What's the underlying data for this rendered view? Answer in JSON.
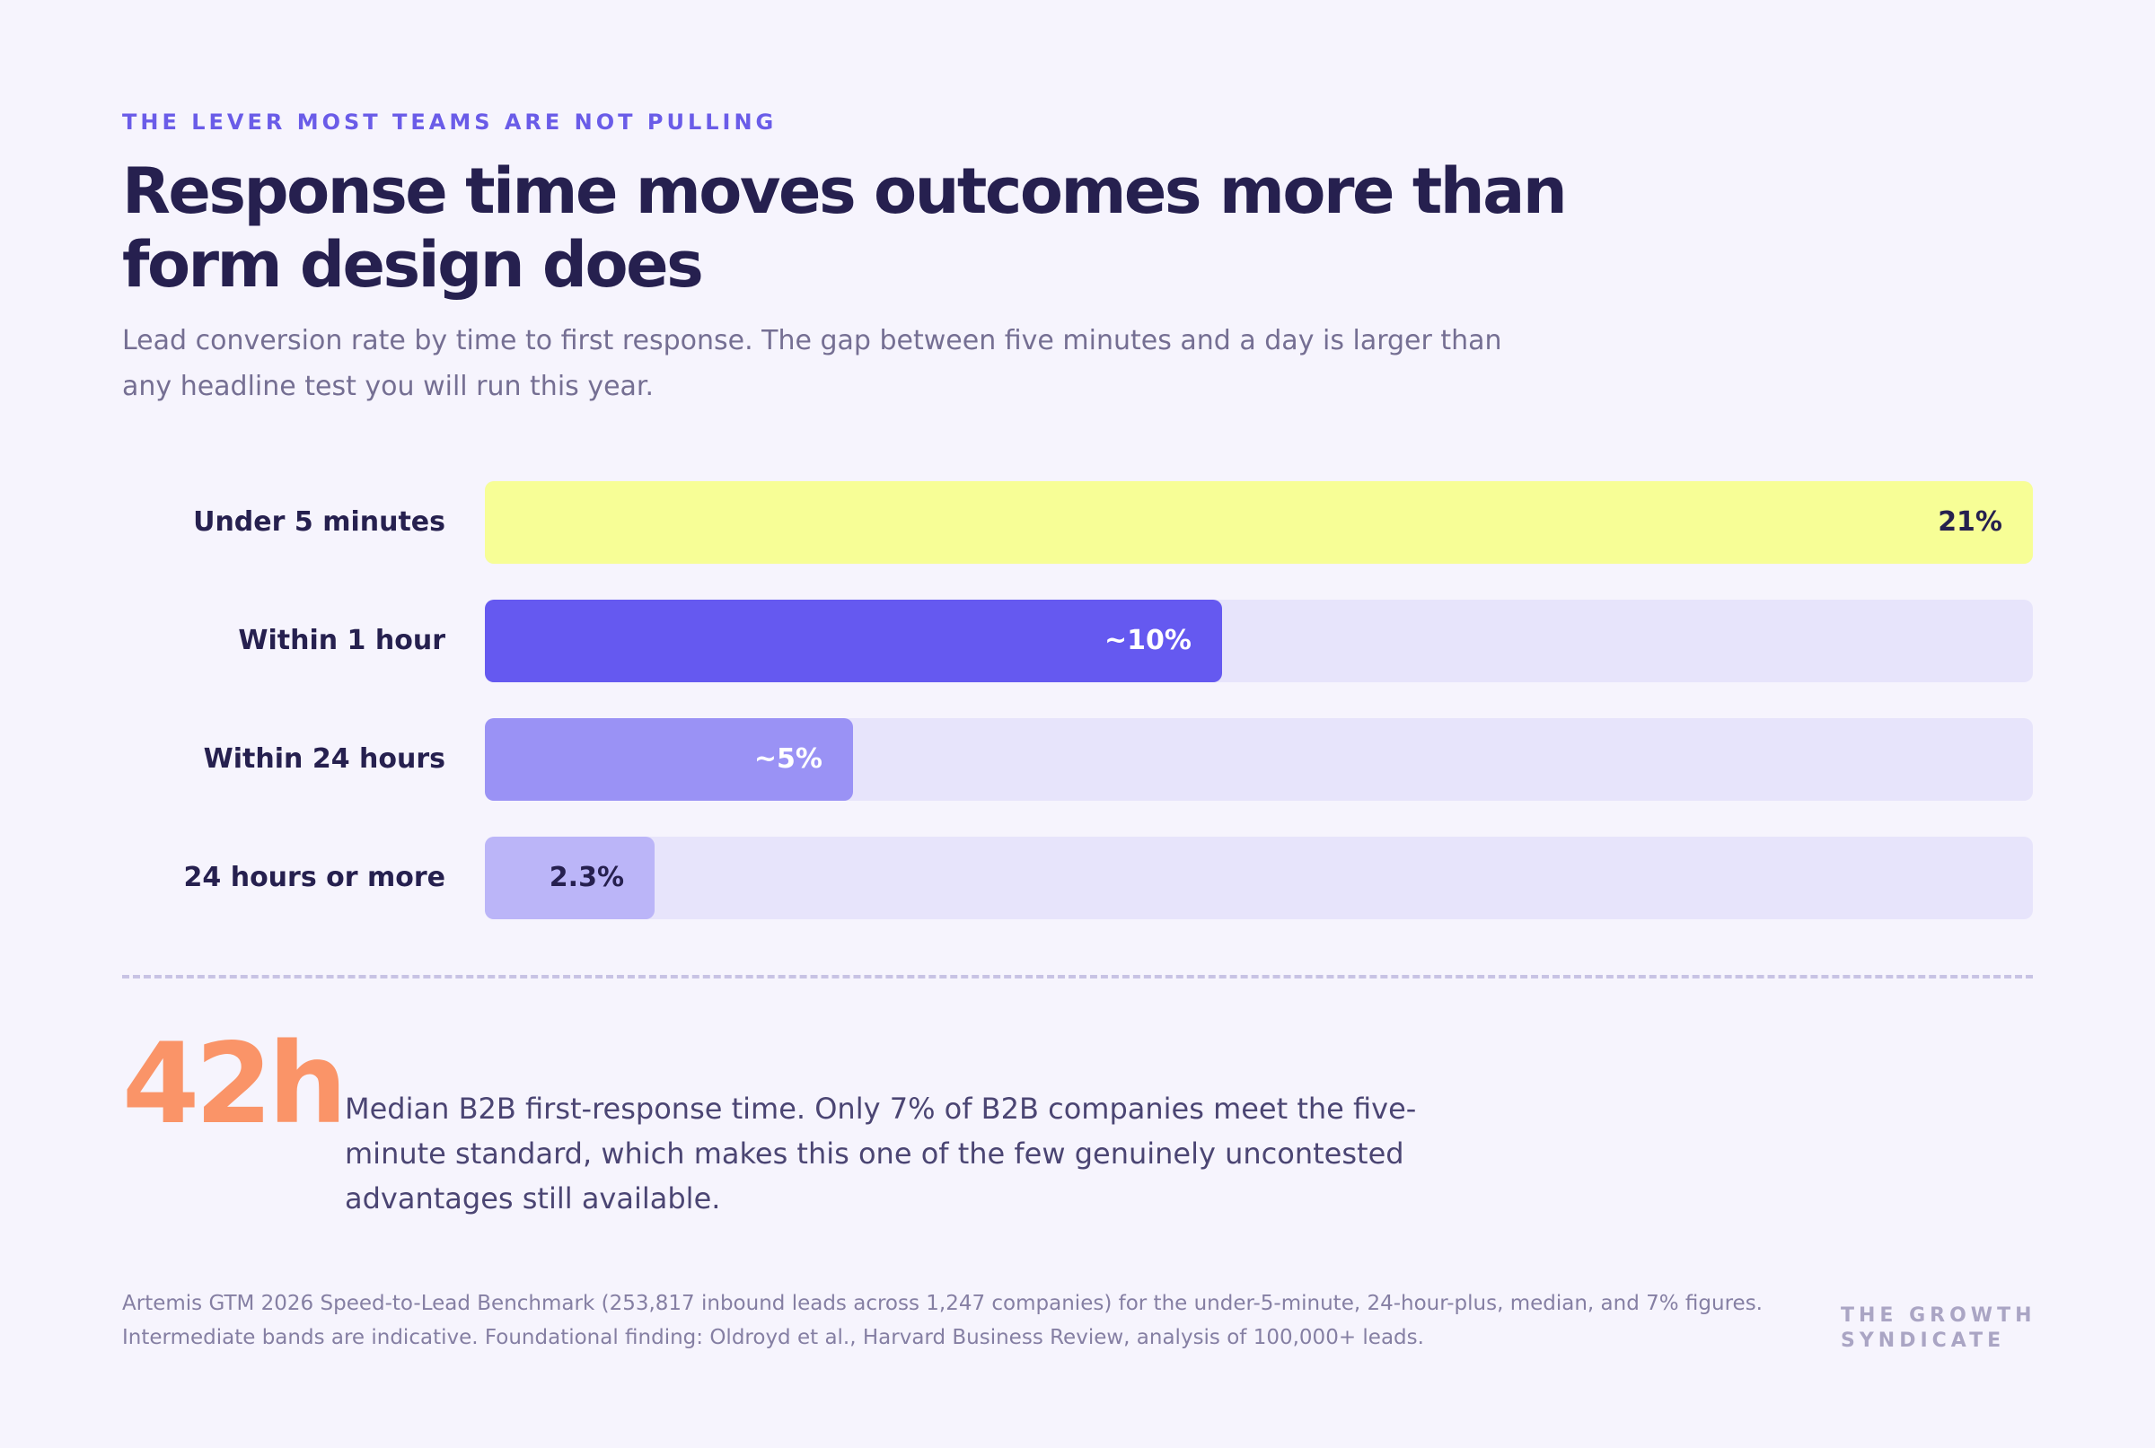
{
  "eyebrow": "THE LEVER MOST TEAMS ARE NOT PULLING",
  "title": "Response time moves outcomes more than form design does",
  "subtitle": "Lead conversion rate by time to first response. The gap between five minutes and a day is larger than any headline test you will run this year.",
  "chart_data": {
    "type": "bar",
    "orientation": "horizontal",
    "categories": [
      "Under 5 minutes",
      "Within 1 hour",
      "Within 24 hours",
      "24 hours or more"
    ],
    "values": [
      21,
      10,
      5,
      2.3
    ],
    "value_labels": [
      "21%",
      "~10%",
      "~5%",
      "2.3%"
    ],
    "xlim": [
      0,
      21
    ],
    "unit": "%",
    "grid": false,
    "legend": "none",
    "colors": [
      "#f7fe96",
      "#6559f0",
      "#9a92f5",
      "#bbb5f8"
    ],
    "label_colors": [
      "#26204f",
      "#ffffff",
      "#ffffff",
      "#26204f"
    ],
    "track_color": "#e7e4fb"
  },
  "stat": {
    "value": "42h",
    "text": "Median B2B first-response time. Only 7% of B2B companies meet the five-minute standard, which makes this one of the few genuinely uncontested advantages still available."
  },
  "source": "Artemis GTM 2026 Speed-to-Lead Benchmark (253,817 inbound leads across 1,247 companies) for the under-5-minute, 24-hour-plus, median, and 7% figures. Intermediate bands are indicative. Foundational finding: Oldroyd et al., Harvard Business Review, analysis of 100,000+ leads.",
  "brand": "THE GROWTH SYNDICATE"
}
